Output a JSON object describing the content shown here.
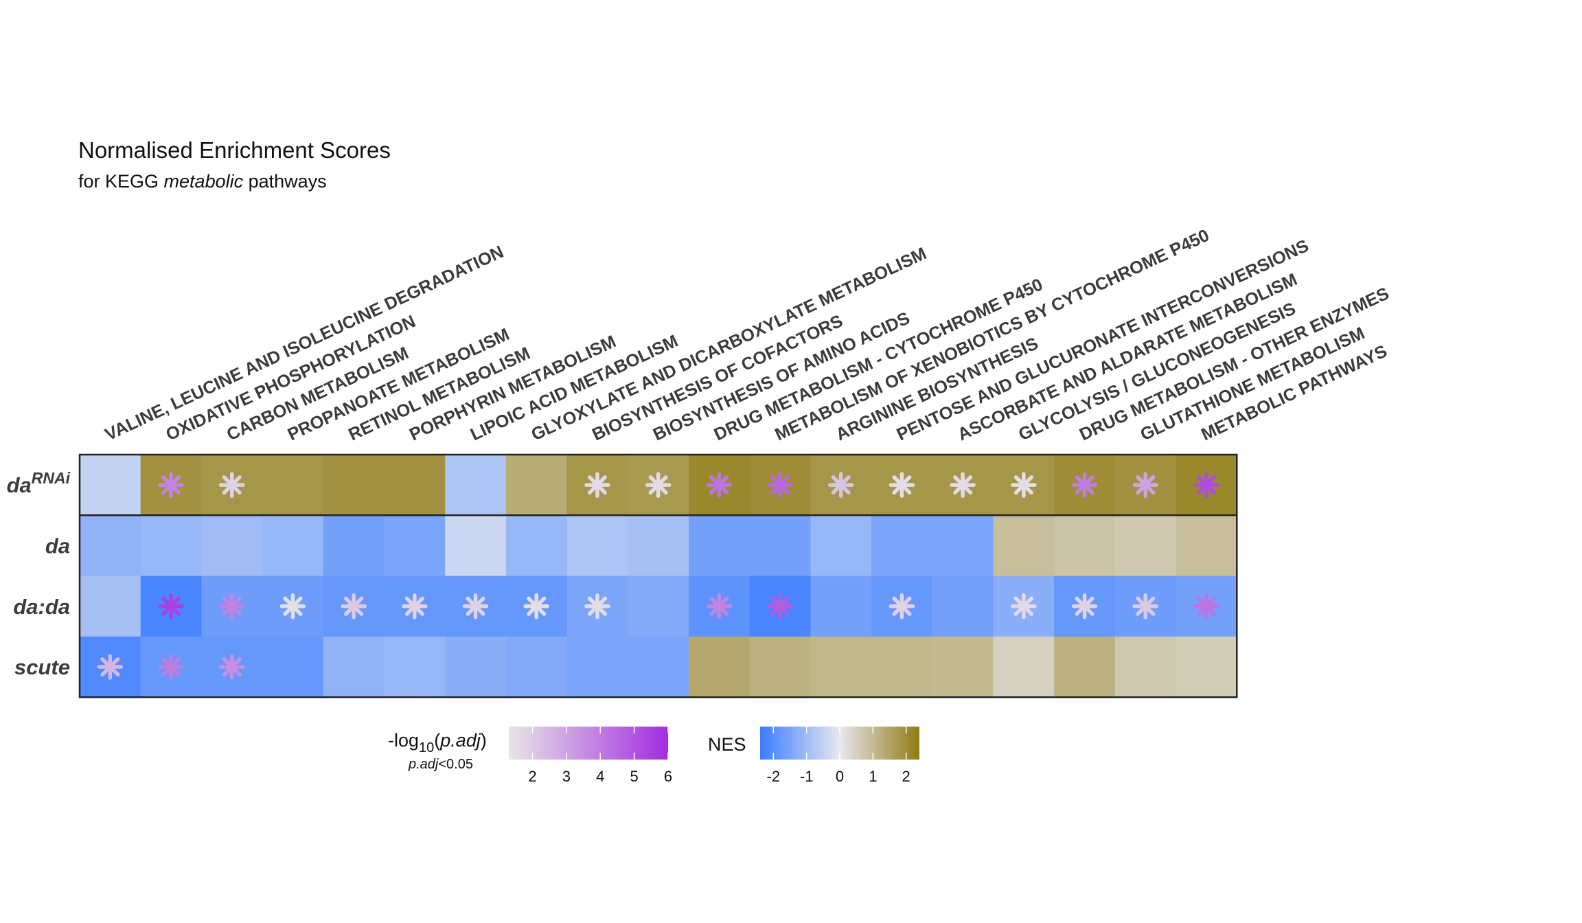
{
  "title": "Normalised Enrichment Scores",
  "subtitle_parts": [
    "for KEGG ",
    "metabolic",
    " pathways"
  ],
  "chart_data": {
    "type": "heatmap",
    "columns": [
      "VALINE, LEUCINE AND ISOLEUCINE DEGRADATION",
      "OXIDATIVE PHOSPHORYLATION",
      "CARBON METABOLISM",
      "PROPANOATE METABOLISM",
      "RETINOL METABOLISM",
      "PORPHYRIN METABOLISM",
      "LIPOIC ACID METABOLISM",
      "GLYOXYLATE AND DICARBOXYLATE METABOLISM",
      "BIOSYNTHESIS OF COFACTORS",
      "BIOSYNTHESIS OF AMINO ACIDS",
      "DRUG METABOLISM - CYTOCHROME P450",
      "METABOLISM OF XENOBIOTICS BY CYTOCHROME P450",
      "ARGININE BIOSYNTHESIS",
      "PENTOSE AND GLUCURONATE INTERCONVERSIONS",
      "ASCORBATE AND ALDARATE METABOLISM",
      "GLYCOLYSIS / GLUCONEOGENESIS",
      "DRUG METABOLISM - OTHER ENZYMES",
      "GLUTATHIONE METABOLISM",
      "METABOLIC PATHWAYS"
    ],
    "rows": [
      {
        "label": "da",
        "superscript": "RNAi",
        "nes": [
          -0.5,
          1.9,
          1.8,
          1.8,
          1.9,
          1.9,
          -0.8,
          1.3,
          1.8,
          1.7,
          2.1,
          2.0,
          1.8,
          1.8,
          1.8,
          1.8,
          2.0,
          1.9,
          2.1
        ],
        "padj_log": [
          null,
          3.8,
          1.8,
          null,
          null,
          null,
          null,
          null,
          1.6,
          1.6,
          4.2,
          4.5,
          2.2,
          1.5,
          1.6,
          1.5,
          4.0,
          3.0,
          5.2
        ]
      },
      {
        "label": "da",
        "superscript": "",
        "nes": [
          -1.2,
          -1.1,
          -1.0,
          -1.1,
          -1.6,
          -1.5,
          -0.4,
          -1.1,
          -0.8,
          -0.9,
          -1.6,
          -1.6,
          -1.1,
          -1.5,
          -1.5,
          0.9,
          0.8,
          0.7,
          0.9
        ],
        "padj_log": [
          null,
          null,
          null,
          null,
          null,
          null,
          null,
          null,
          null,
          null,
          null,
          null,
          null,
          null,
          null,
          null,
          null,
          null,
          null
        ]
      },
      {
        "label": "da:da",
        "superscript": "",
        "nes": [
          -0.9,
          -2.2,
          -1.7,
          -1.7,
          -1.8,
          -1.8,
          -1.8,
          -1.8,
          -1.5,
          -1.4,
          -1.9,
          -2.2,
          -1.6,
          -1.8,
          -1.6,
          -1.3,
          -1.8,
          -1.7,
          -1.6
        ],
        "padj_log": [
          null,
          5.5,
          3.8,
          1.5,
          2.0,
          1.8,
          1.8,
          1.5,
          1.5,
          null,
          3.8,
          4.8,
          null,
          1.8,
          null,
          1.6,
          1.8,
          2.0,
          4.2
        ]
      },
      {
        "label": "scute",
        "superscript": "",
        "nes": [
          -2.1,
          -1.8,
          -1.8,
          -1.8,
          -1.2,
          -1.1,
          -1.3,
          -1.4,
          -1.5,
          -1.5,
          1.4,
          1.2,
          1.1,
          1.1,
          1.0,
          0.5,
          1.2,
          0.7,
          0.6
        ],
        "padj_log": [
          2.5,
          4.0,
          3.5,
          null,
          null,
          null,
          null,
          null,
          null,
          null,
          null,
          null,
          null,
          null,
          null,
          null,
          null,
          null,
          null
        ]
      }
    ],
    "nes_range": [
      -2.4,
      2.4
    ],
    "padj_range": [
      1.3,
      6
    ],
    "colors": {
      "nes_neg": "#3a7cff",
      "nes_mid": "#e8e8ee",
      "nes_pos": "#8f7a12",
      "padj_low": "#e6e6e6",
      "padj_high": "#a22dde"
    }
  },
  "legend_padj": {
    "label_pre": "-log",
    "label_sub": "10",
    "label_paren_open": "(",
    "label_italic": "p.adj",
    "label_paren_close": ")",
    "note_italic": "p.adj",
    "note_rest": "<0.05",
    "ticks": [
      "2",
      "3",
      "4",
      "5",
      "6"
    ]
  },
  "legend_nes": {
    "label": "NES",
    "ticks": [
      "-2",
      "-1",
      "0",
      "1",
      "2"
    ]
  }
}
